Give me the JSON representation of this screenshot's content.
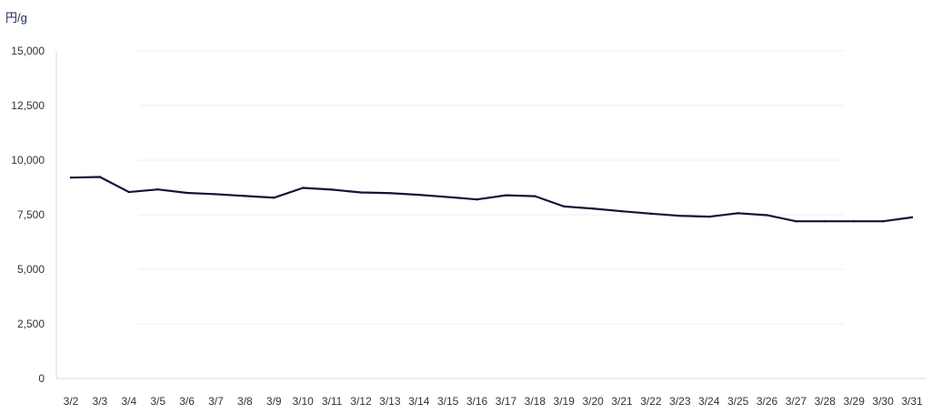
{
  "chart_data": {
    "type": "line",
    "title": "",
    "xlabel": "",
    "ylabel": "円/g",
    "categories": [
      "3/2",
      "3/3",
      "3/4",
      "3/5",
      "3/6",
      "3/7",
      "3/8",
      "3/9",
      "3/10",
      "3/11",
      "3/12",
      "3/13",
      "3/14",
      "3/15",
      "3/16",
      "3/17",
      "3/18",
      "3/19",
      "3/20",
      "3/21",
      "3/22",
      "3/23",
      "3/24",
      "3/25",
      "3/26",
      "3/27",
      "3/28",
      "3/29",
      "3/30",
      "3/31"
    ],
    "series": [
      {
        "values": [
          9200,
          9230,
          8540,
          8660,
          8500,
          8440,
          8360,
          8280,
          8730,
          8650,
          8520,
          8490,
          8410,
          8310,
          8200,
          8390,
          8350,
          7880,
          7780,
          7660,
          7550,
          7450,
          7410,
          7570,
          7480,
          7200,
          7200,
          7200,
          7200,
          7380
        ]
      }
    ],
    "ylim": [
      0,
      15000
    ],
    "yticks": [
      "0",
      "2,500",
      "5,000",
      "7,500",
      "10,000",
      "12,500",
      "15,000"
    ],
    "grid": true,
    "line_color": "#0f1638",
    "axis_color": "#d9d9d9",
    "grid_color": "#efefef",
    "text_color": "#333333"
  }
}
